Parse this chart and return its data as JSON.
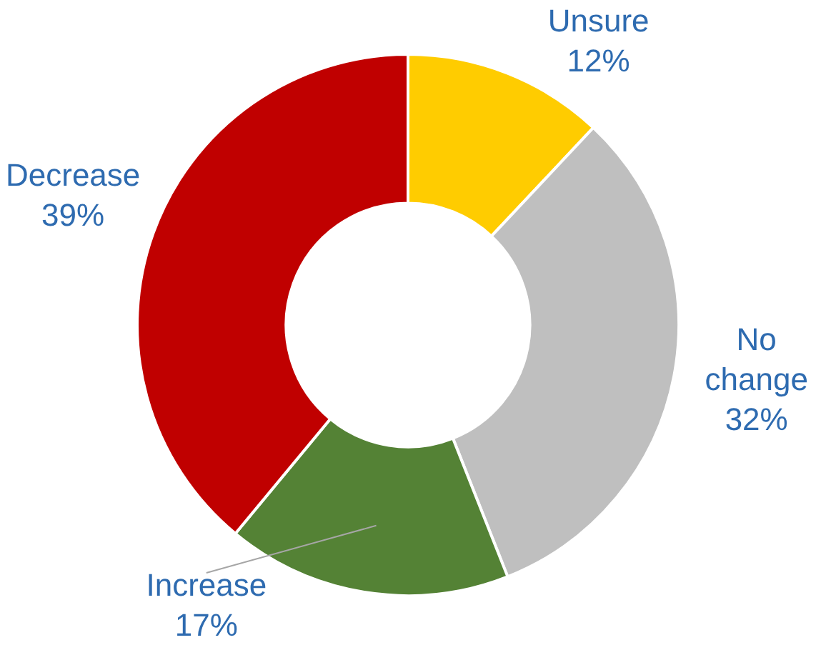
{
  "chart_data": {
    "type": "donut",
    "categories": [
      "Unsure",
      "No change",
      "Increase",
      "Decrease"
    ],
    "values": [
      12,
      32,
      17,
      39
    ],
    "value_labels": [
      "12%",
      "32%",
      "17%",
      "39%"
    ],
    "colors": [
      "#ffcc00",
      "#bfbfbf",
      "#548235",
      "#c00000"
    ],
    "legend": false
  }
}
